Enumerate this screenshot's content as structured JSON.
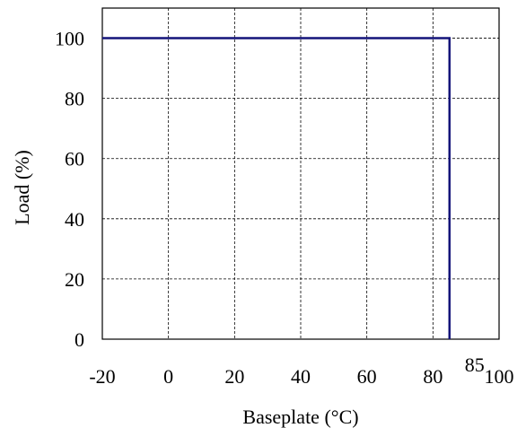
{
  "chart_data": {
    "type": "line",
    "title": "",
    "xlabel": "Baseplate (°C)",
    "ylabel": "Load (%)",
    "xlim": [
      -20,
      100
    ],
    "ylim": [
      0,
      110
    ],
    "x_ticks": [
      -20,
      0,
      20,
      40,
      60,
      80,
      100
    ],
    "y_ticks": [
      0,
      20,
      40,
      60,
      80,
      100
    ],
    "grid": true,
    "series": [
      {
        "color": "#14147a",
        "x": [
          -20,
          85,
          85
        ],
        "y": [
          100,
          100,
          0
        ]
      }
    ],
    "annotations": [
      {
        "text": "85",
        "x": 85
      }
    ]
  }
}
